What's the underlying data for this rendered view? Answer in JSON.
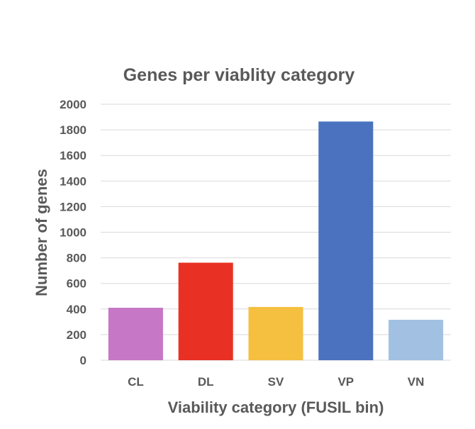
{
  "chart_data": {
    "type": "bar",
    "title": "Genes per viablity category",
    "xlabel": "Viability category (FUSIL bin)",
    "ylabel": "Number of genes",
    "categories": [
      "CL",
      "DL",
      "SV",
      "VP",
      "VN"
    ],
    "values": [
      410,
      762,
      416,
      1865,
      316
    ],
    "colors": [
      "#c678c6",
      "#e83124",
      "#f5c040",
      "#4a72be",
      "#a2c1e2"
    ],
    "ylim": [
      0,
      2000
    ],
    "yticks": [
      0,
      200,
      400,
      600,
      800,
      1000,
      1200,
      1400,
      1600,
      1800,
      2000
    ],
    "grid": true,
    "legend": "none"
  }
}
